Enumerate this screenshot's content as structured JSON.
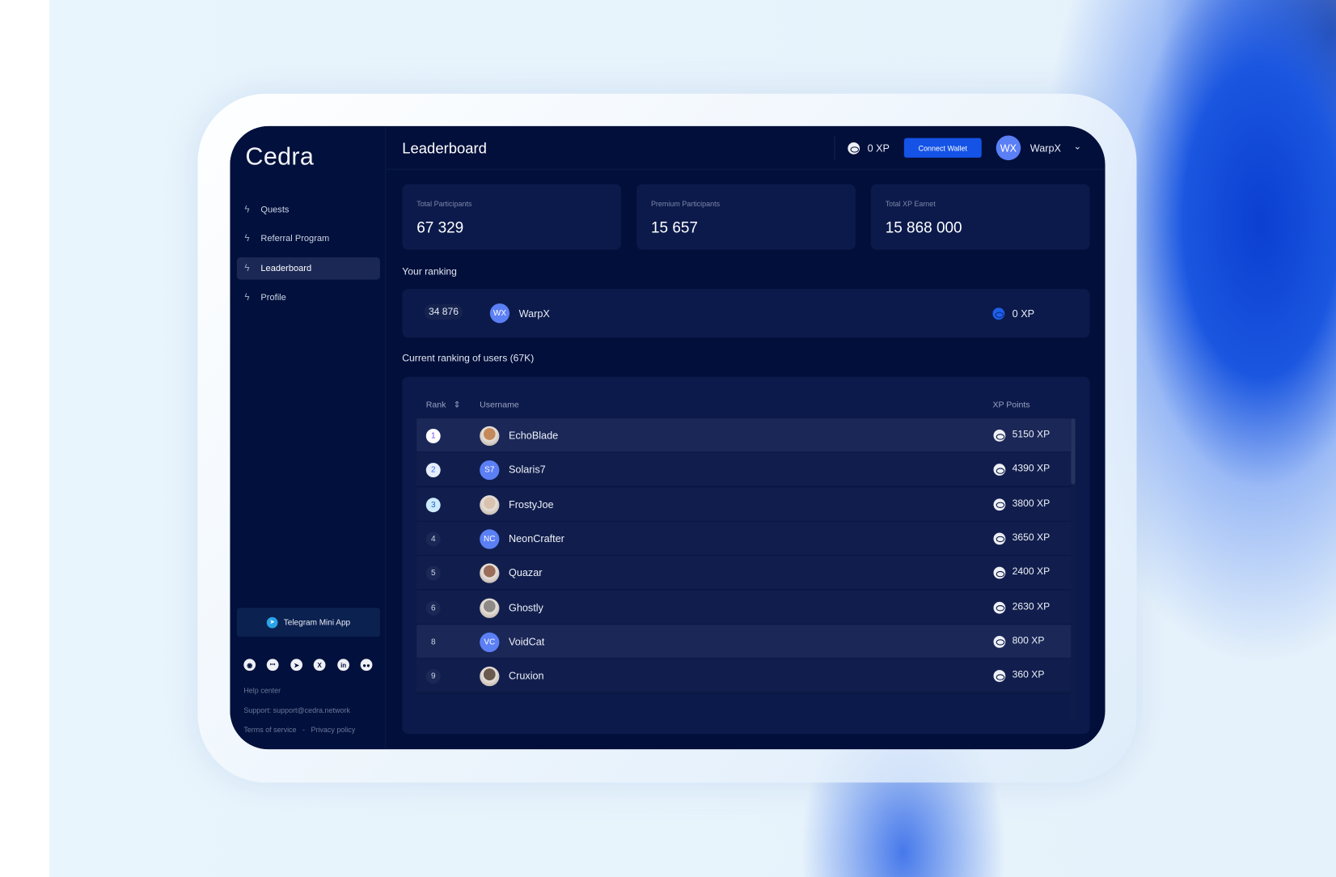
{
  "sidebar": {
    "logo": "Cedra",
    "items": [
      {
        "label": "Quests"
      },
      {
        "label": "Referral Program"
      },
      {
        "label": "Leaderboard",
        "active": true
      },
      {
        "label": "Profile"
      }
    ],
    "telegram_label": "Telegram Mini App",
    "socials": [
      "github-icon",
      "discord-icon",
      "telegram-icon",
      "x-icon",
      "linkedin-icon",
      "medium-icon"
    ],
    "help": "Help center",
    "support": "Support: support@cedra.network",
    "terms": "Terms of service",
    "sep": "-",
    "privacy": "Privacy policy"
  },
  "header": {
    "title": "Leaderboard",
    "xp": "0 XP",
    "connect_wallet": "Connect Wallet",
    "user_initials": "WX",
    "username": "WarpX"
  },
  "stats": [
    {
      "label": "Total Participants",
      "value": "67 329"
    },
    {
      "label": "Premium Participants",
      "value": "15 657"
    },
    {
      "label": "Total XP Earnet",
      "value": "15 868 000"
    }
  ],
  "your_ranking": {
    "title": "Your ranking",
    "rank": "34 876",
    "initials": "WX",
    "username": "WarpX",
    "xp": "0 XP"
  },
  "table": {
    "title": "Current ranking of users (67K)",
    "columns": [
      "Rank",
      "Username",
      "XP Points"
    ],
    "rows": [
      {
        "rank": "1",
        "initials": "",
        "username": "EchoBlade",
        "xp": "5150 XP",
        "avatar": "photo"
      },
      {
        "rank": "2",
        "initials": "S7",
        "username": "Solaris7",
        "xp": "4390 XP",
        "avatar": "initials"
      },
      {
        "rank": "3",
        "initials": "",
        "username": "FrostyJoe",
        "xp": "3800 XP",
        "avatar": "photo"
      },
      {
        "rank": "4",
        "initials": "NC",
        "username": "NeonCrafter",
        "xp": "3650 XP",
        "avatar": "initials"
      },
      {
        "rank": "5",
        "initials": "",
        "username": "Quazar",
        "xp": "2400 XP",
        "avatar": "photo"
      },
      {
        "rank": "6",
        "initials": "",
        "username": "Ghostly",
        "xp": "2630 XP",
        "avatar": "photo"
      },
      {
        "rank": "8",
        "initials": "VC",
        "username": "VoidCat",
        "xp": "800 XP",
        "avatar": "initials"
      },
      {
        "rank": "9",
        "initials": "",
        "username": "Cruxion",
        "xp": "360 XP",
        "avatar": "photo"
      }
    ]
  },
  "colors": {
    "accent": "#1453e6",
    "panel": "#020f3b",
    "card": "#0c1a4b",
    "avatar": "#5b7ff5"
  }
}
